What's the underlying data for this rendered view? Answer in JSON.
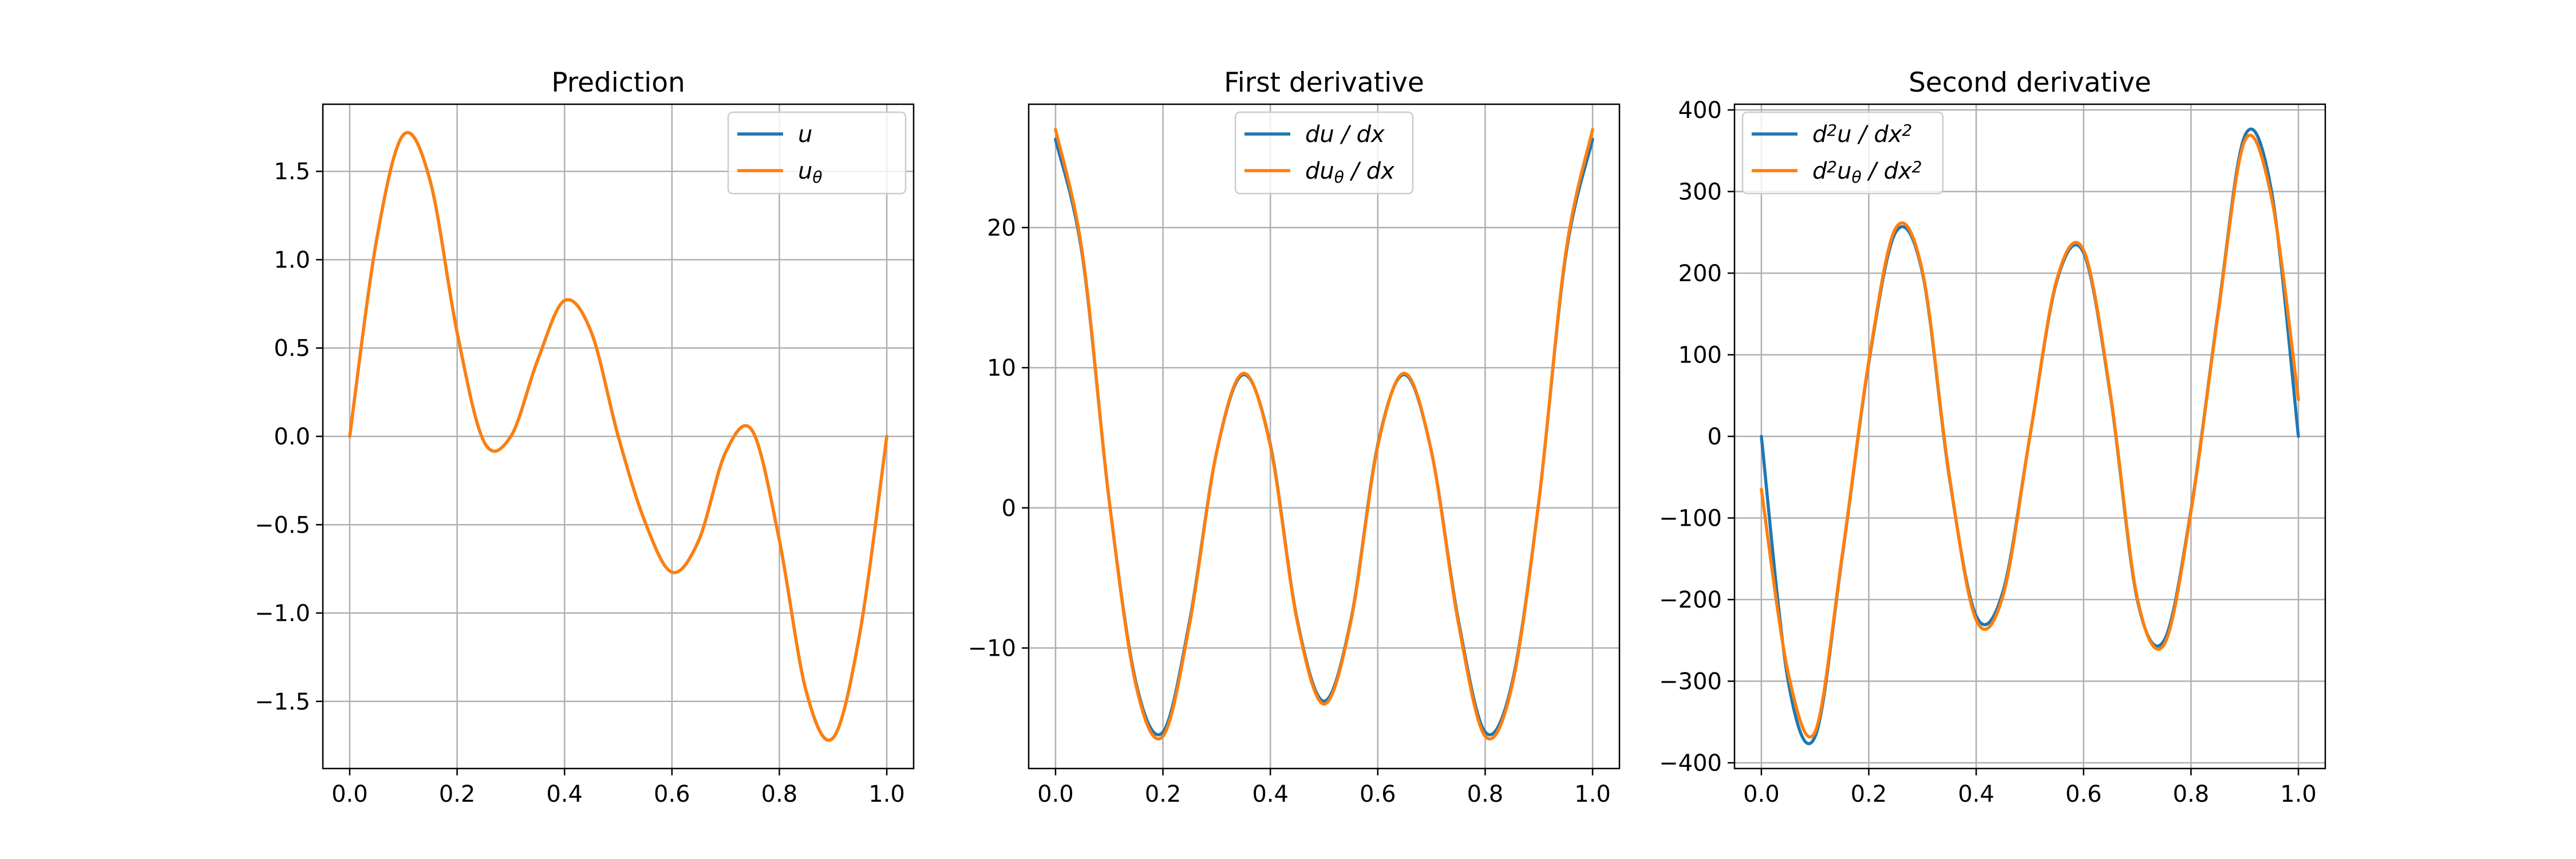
{
  "chart_data": [
    {
      "type": "line",
      "title": "Prediction",
      "xlabel": "",
      "ylabel": "",
      "xlim": [
        -0.05,
        1.05
      ],
      "ylim": [
        -1.88,
        1.88
      ],
      "xticks": [
        0.0,
        0.2,
        0.4,
        0.6,
        0.8,
        1.0
      ],
      "xtick_labels": [
        "0.0",
        "0.2",
        "0.4",
        "0.6",
        "0.8",
        "1.0"
      ],
      "yticks": [
        1.5,
        1.0,
        0.5,
        0.0,
        -0.5,
        -1.0,
        -1.5
      ],
      "ytick_labels": [
        "1.5",
        "1.0",
        "0.5",
        "0.0",
        "−0.5",
        "−1.0",
        "−1.5"
      ],
      "grid": true,
      "legend_position": "top-right",
      "x": [
        0.0,
        0.05,
        0.1,
        0.15,
        0.2,
        0.25,
        0.3,
        0.35,
        0.4,
        0.45,
        0.5,
        0.55,
        0.6,
        0.65,
        0.7,
        0.75,
        0.8,
        0.85,
        0.9,
        0.95,
        1.0
      ],
      "series": [
        {
          "label": "u",
          "label_sub": "",
          "color": "#1f77b4",
          "values": [
            0.0,
            1.111,
            1.707,
            1.444,
            0.588,
            -0.03,
            0.0,
            0.432,
            0.769,
            0.588,
            0.0,
            -0.485,
            -0.769,
            -0.588,
            -0.09,
            0.03,
            -0.588,
            -1.444,
            -1.707,
            -1.111,
            0.0
          ]
        },
        {
          "label": "u",
          "label_sub": "θ",
          "color": "#ff7f0e",
          "values": [
            0.0,
            1.111,
            1.707,
            1.444,
            0.588,
            -0.03,
            0.0,
            0.432,
            0.769,
            0.588,
            0.0,
            -0.485,
            -0.769,
            -0.588,
            -0.09,
            0.03,
            -0.588,
            -1.444,
            -1.707,
            -1.111,
            0.0
          ]
        }
      ]
    },
    {
      "type": "line",
      "title": "First derivative",
      "xlabel": "",
      "ylabel": "",
      "xlim": [
        -0.05,
        1.05
      ],
      "ylim": [
        -18.6,
        28.8
      ],
      "xticks": [
        0.0,
        0.2,
        0.4,
        0.6,
        0.8,
        1.0
      ],
      "xtick_labels": [
        "0.0",
        "0.2",
        "0.4",
        "0.6",
        "0.8",
        "1.0"
      ],
      "yticks": [
        20,
        10,
        0,
        -10
      ],
      "ytick_labels": [
        "20",
        "10",
        "0",
        "−10"
      ],
      "grid": true,
      "legend_position": "top-center",
      "x": [
        0.0,
        0.05,
        0.1,
        0.15,
        0.2,
        0.25,
        0.3,
        0.35,
        0.4,
        0.45,
        0.5,
        0.55,
        0.6,
        0.65,
        0.7,
        0.75,
        0.8,
        0.85,
        0.9,
        0.95,
        1.0
      ],
      "series": [
        {
          "label": "du / dx",
          "color": "#1f77b4",
          "values": [
            26.3,
            18.0,
            0.5,
            -12.5,
            -16.0,
            -8.0,
            4.0,
            9.5,
            4.5,
            -8.0,
            -13.8,
            -8.0,
            4.5,
            9.5,
            4.0,
            -8.0,
            -16.0,
            -12.5,
            0.5,
            18.0,
            26.3
          ]
        },
        {
          "label": "du",
          "label_sub": "θ",
          "label_tail": " / dx",
          "color": "#ff7f0e",
          "values": [
            27.0,
            18.2,
            0.5,
            -12.7,
            -16.3,
            -8.2,
            4.0,
            9.6,
            4.4,
            -8.1,
            -14.0,
            -8.1,
            4.4,
            9.6,
            4.0,
            -8.2,
            -16.3,
            -12.7,
            0.5,
            18.2,
            27.0
          ]
        }
      ]
    },
    {
      "type": "line",
      "title": "Second derivative",
      "xlabel": "",
      "ylabel": "",
      "xlim": [
        -0.05,
        1.05
      ],
      "ylim": [
        -407,
        407
      ],
      "xticks": [
        0.0,
        0.2,
        0.4,
        0.6,
        0.8,
        1.0
      ],
      "xtick_labels": [
        "0.0",
        "0.2",
        "0.4",
        "0.6",
        "0.8",
        "1.0"
      ],
      "yticks": [
        400,
        300,
        200,
        100,
        0,
        -100,
        -200,
        -300,
        -400
      ],
      "ytick_labels": [
        "400",
        "300",
        "200",
        "100",
        "0",
        "−100",
        "−200",
        "−300",
        "−400"
      ],
      "grid": true,
      "legend_position": "top-left",
      "x": [
        0.0,
        0.05,
        0.1,
        0.15,
        0.2,
        0.25,
        0.3,
        0.35,
        0.4,
        0.45,
        0.5,
        0.55,
        0.6,
        0.65,
        0.7,
        0.75,
        0.8,
        0.85,
        0.9,
        0.95,
        1.0
      ],
      "series": [
        {
          "label": "d",
          "label_sup": "2",
          "label_tail": "u / dx",
          "label_sup2": "2",
          "color": "#1f77b4",
          "values": [
            0.0,
            -300.0,
            -368.0,
            -150.0,
            90.0,
            250.0,
            200.0,
            -50.0,
            -220.0,
            -190.0,
            0.0,
            190.0,
            225.0,
            50.0,
            -200.0,
            -250.0,
            -90.0,
            150.0,
            368.0,
            300.0,
            0.0
          ]
        },
        {
          "label": "d",
          "label_sup": "2",
          "label_mid": "u",
          "label_sub": "θ",
          "label_tail": " / dx",
          "label_sup2": "2",
          "color": "#ff7f0e",
          "values": [
            -65.0,
            -290.0,
            -362.0,
            -148.0,
            92.0,
            255.0,
            202.0,
            -48.0,
            -225.0,
            -195.0,
            0.0,
            192.0,
            228.0,
            52.0,
            -198.0,
            -255.0,
            -92.0,
            148.0,
            362.0,
            292.0,
            45.0
          ]
        }
      ]
    }
  ]
}
